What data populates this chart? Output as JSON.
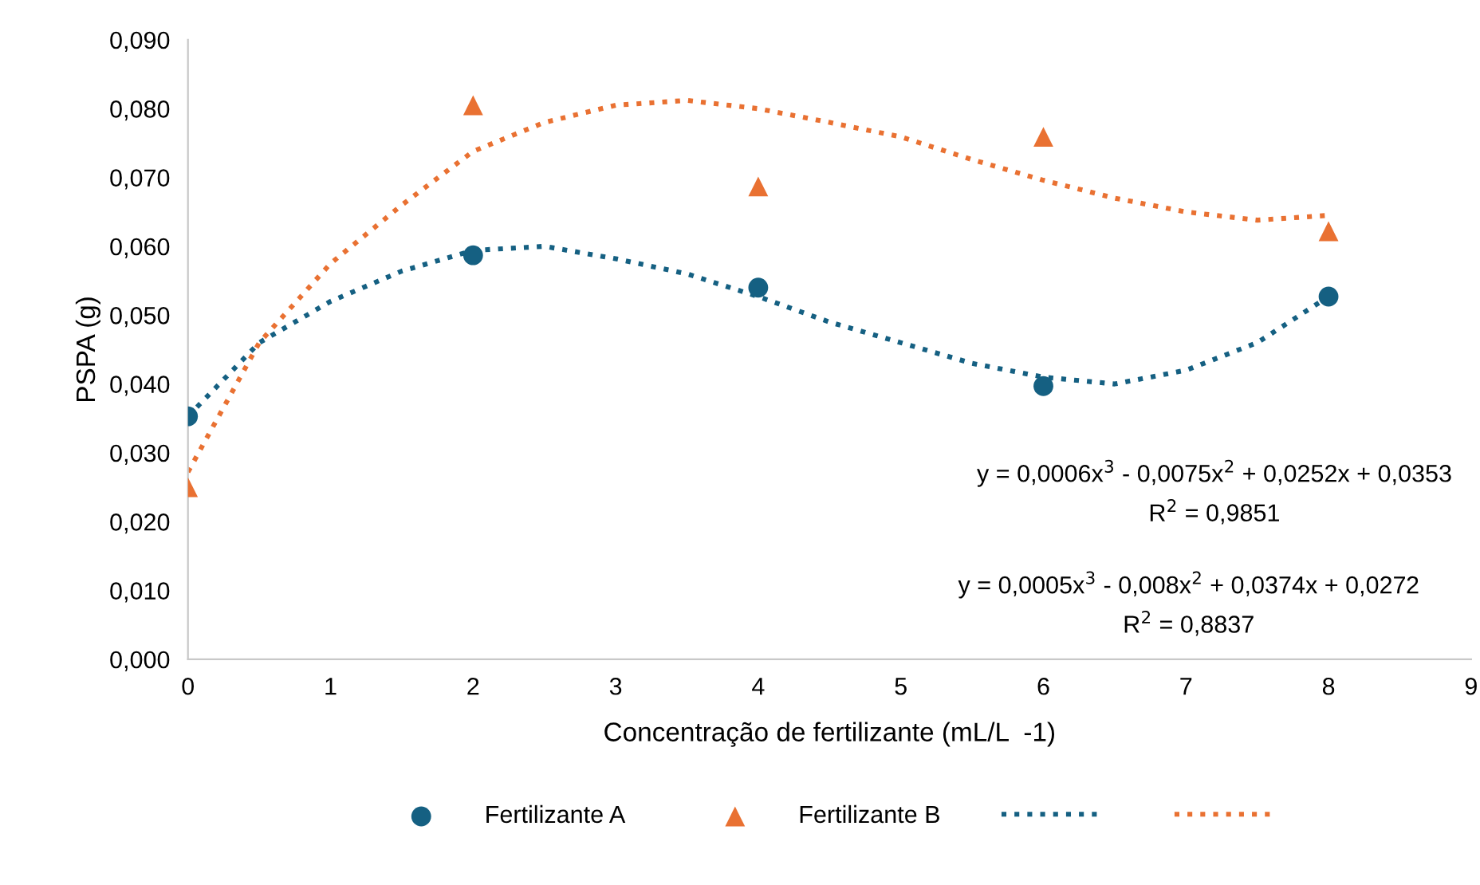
{
  "chart_data": {
    "type": "scatter",
    "xlabel": "Concentração de fertilizante (mL/L  -1)",
    "ylabel": "PSPA (g)",
    "xlim": [
      0,
      9
    ],
    "xticks": [
      0,
      1,
      2,
      3,
      4,
      5,
      6,
      7,
      8,
      9
    ],
    "ylim": [
      0,
      0.09
    ],
    "yticks": [
      {
        "value": 0,
        "label": "0,000"
      },
      {
        "value": 0.01,
        "label": "0,010"
      },
      {
        "value": 0.02,
        "label": "0,020"
      },
      {
        "value": 0.03,
        "label": "0,030"
      },
      {
        "value": 0.04,
        "label": "0,040"
      },
      {
        "value": 0.05,
        "label": "0,050"
      },
      {
        "value": 0.06,
        "label": "0,060"
      },
      {
        "value": 0.07,
        "label": "0,070"
      },
      {
        "value": 0.08,
        "label": "0,080"
      },
      {
        "value": 0.09,
        "label": "0,090"
      }
    ],
    "grid": false,
    "legend": "bottom",
    "series": [
      {
        "name": "Fertilizante A",
        "marker": "circle",
        "color": "#156082",
        "x": [
          0,
          2,
          4,
          6,
          8
        ],
        "values": [
          0.0353,
          0.0587,
          0.054,
          0.0397,
          0.0527
        ]
      },
      {
        "name": "Fertilizante B",
        "marker": "triangle",
        "color": "#e97132",
        "x": [
          0,
          2,
          4,
          6,
          8
        ],
        "values": [
          0.025,
          0.0805,
          0.0687,
          0.0759,
          0.0622
        ]
      },
      {
        "type": "line",
        "line_style": "dotted",
        "marker": "none",
        "color": "#156082",
        "x": [
          0,
          0.5,
          1,
          1.5,
          2,
          2.5,
          3,
          3.5,
          4,
          4.5,
          5,
          5.5,
          6,
          6.5,
          7,
          7.5,
          8
        ],
        "values": [
          0.0353,
          0.046,
          0.052,
          0.0564,
          0.0594,
          0.06,
          0.0582,
          0.056,
          0.0527,
          0.049,
          0.046,
          0.043,
          0.041,
          0.04,
          0.042,
          0.046,
          0.0527
        ]
      },
      {
        "type": "line",
        "line_style": "dotted",
        "marker": "none",
        "color": "#e97132",
        "x": [
          0,
          0.5,
          1,
          1.5,
          2,
          2.5,
          3,
          3.5,
          4,
          4.5,
          5,
          5.5,
          6,
          6.5,
          7,
          7.5,
          8
        ],
        "values": [
          0.0272,
          0.046,
          0.0575,
          0.066,
          0.0738,
          0.078,
          0.0805,
          0.0812,
          0.08,
          0.078,
          0.0759,
          0.0726,
          0.0696,
          0.067,
          0.065,
          0.0638,
          0.0645
        ]
      }
    ],
    "annotations": [
      "y = 0,0006x$^{3}$ - 0,0075x$^{2}$ + 0,0252x + 0,0353",
      "R$^{2}$ = 0,9851",
      "y = 0,0005x$^{3}$ - 0,008x$^{2}$ + 0,0374x + 0,0272",
      "R$^{2}$ = 0,8837"
    ]
  }
}
